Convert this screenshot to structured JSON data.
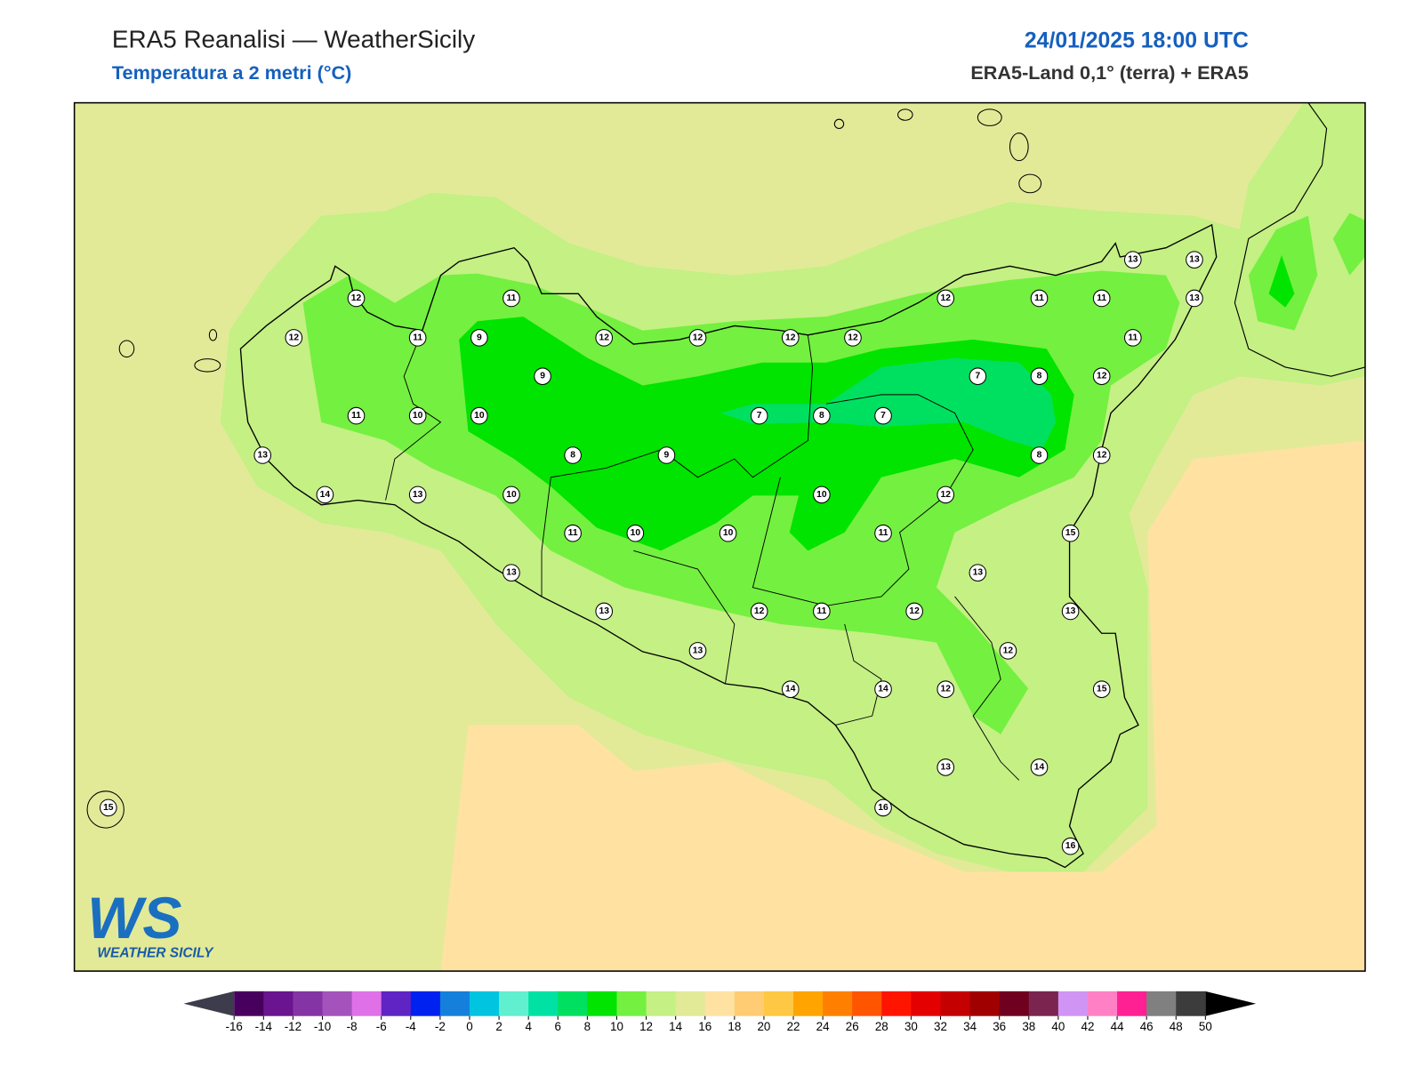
{
  "header": {
    "title": "ERA5 Reanalisi — WeatherSicily",
    "subtitle": "Temperatura a 2 metri (°C)",
    "datetime": "24/01/2025 18:00 UTC",
    "source": "ERA5-Land 0,1° (terra) + ERA5"
  },
  "stations": [
    12,
    11,
    12,
    11,
    9,
    12,
    12,
    12,
    12,
    12,
    11,
    11,
    13,
    13,
    13,
    11,
    9,
    7,
    8,
    12,
    11,
    10,
    10,
    7,
    8,
    7,
    13,
    8,
    9,
    8,
    12,
    14,
    13,
    10,
    10,
    12,
    11,
    10,
    10,
    11,
    15,
    13,
    13,
    13,
    12,
    11,
    12,
    13,
    13,
    12,
    14,
    14,
    12,
    15,
    13,
    14,
    15,
    16,
    16
  ],
  "colorbar": {
    "ticks": [
      -16,
      -14,
      -12,
      -10,
      -8,
      -6,
      -4,
      -2,
      0,
      2,
      4,
      6,
      8,
      10,
      12,
      14,
      16,
      18,
      20,
      22,
      24,
      26,
      28,
      30,
      32,
      34,
      36,
      38,
      40,
      42,
      44,
      46,
      48,
      50
    ],
    "colors": [
      "#48005e",
      "#6a1490",
      "#8434a4",
      "#a452bc",
      "#e070e8",
      "#6024c4",
      "#0022f0",
      "#1480dc",
      "#00c4e0",
      "#60f0d0",
      "#00e2a4",
      "#00e060",
      "#00e400",
      "#74f040",
      "#c4f084",
      "#e2ea98",
      "#ffe2a2",
      "#ffcc74",
      "#ffc844",
      "#ffa400",
      "#ff8000",
      "#ff5400",
      "#ff1400",
      "#e40000",
      "#c40000",
      "#a00000",
      "#700020",
      "#7c2450",
      "#d094f4",
      "#ff80c4",
      "#ff2094",
      "#808080",
      "#3c3c3c"
    ],
    "under": "#3c3c4c",
    "over": "#000000"
  },
  "logo": {
    "mark": "WS",
    "name": "WEATHER SICILY"
  }
}
